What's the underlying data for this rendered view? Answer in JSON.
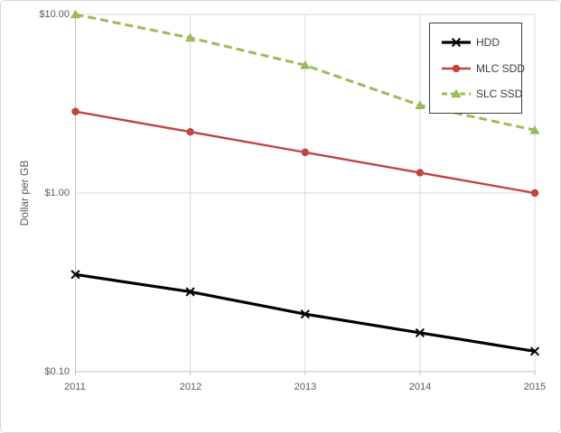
{
  "chart_data": {
    "type": "line",
    "title": "",
    "xlabel": "",
    "ylabel": "Dollar per GB",
    "y_scale": "log10",
    "ylim": [
      0.1,
      10.0
    ],
    "grid": true,
    "legend_position": "top-right",
    "x_tick_labels": [
      "2011",
      "2012",
      "2013",
      "2014",
      "2015"
    ],
    "y_ticks": [
      {
        "label": "$10.00",
        "value": 10.0
      },
      {
        "label": "$1.00",
        "value": 1.0
      },
      {
        "label": "$0.10",
        "value": 0.1
      }
    ],
    "x": [
      2011,
      2012,
      2013,
      2014,
      2015
    ],
    "series": [
      {
        "name": "HDD",
        "color": "#000000",
        "marker": "x-cross",
        "dash": "solid",
        "values": [
          0.35,
          0.28,
          0.21,
          0.165,
          0.13
        ]
      },
      {
        "name": "MLC SDD",
        "color": "#c0443f",
        "marker": "circle",
        "dash": "solid",
        "values": [
          2.86,
          2.2,
          1.69,
          1.3,
          1.0
        ]
      },
      {
        "name": "SLC SSD",
        "color": "#9bbb59",
        "marker": "triangle-up",
        "dash": "dashed",
        "values": [
          10.0,
          7.4,
          5.2,
          3.1,
          2.25
        ]
      }
    ]
  },
  "colors": {
    "gridline": "#d9d9d9",
    "axis_line": "#c0c0c0",
    "tick_text": "#595959",
    "legend_border": "#3f3f3f",
    "background": "#ffffff"
  }
}
